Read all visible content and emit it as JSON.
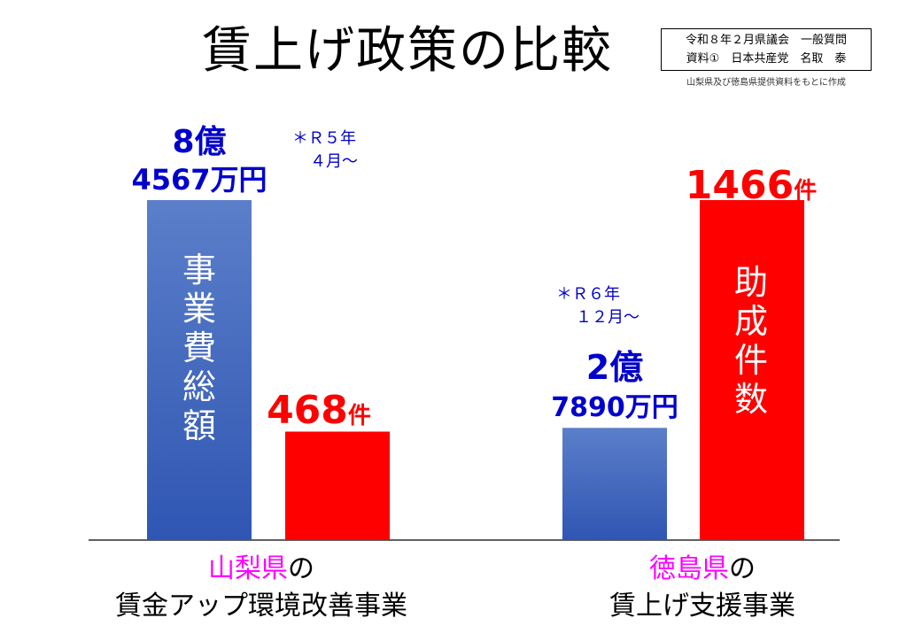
{
  "title": "賃上げ政策の比較",
  "note_box": {
    "line1": "令和８年２月県議会　一般質問",
    "line2": "資料①　日本共産党　名取　泰"
  },
  "source": "山梨県及び徳島県提供資料をもとに作成",
  "colors": {
    "blue_bar_top": "#5b7fc9",
    "blue_bar_bottom": "#2f56b3",
    "red_bar": "#ff0000",
    "blue_text": "#0000cc",
    "red_text": "#ff0000",
    "pref_label": "#ff00ff"
  },
  "chart_data": {
    "type": "bar",
    "groups": [
      {
        "prefecture": "山梨県",
        "label_suffix": "の",
        "label_line2": "賃金アップ環境改善事業",
        "note": [
          "＊Ｒ５年",
          "４月～"
        ],
        "bars": [
          {
            "kind": "事業費総額",
            "inner_label": "事業費総額",
            "value_line1": "8億",
            "value_line2": "4567万円",
            "value_yen": 845670000,
            "relative_height": 1.0
          },
          {
            "kind": "助成件数",
            "value_number": "468",
            "value_unit": "件",
            "value": 468,
            "relative_height": 0.319
          }
        ]
      },
      {
        "prefecture": "徳島県",
        "label_suffix": "の",
        "label_line2": "賃上げ支援事業",
        "note": [
          "＊Ｒ６年",
          "１２月～"
        ],
        "bars": [
          {
            "kind": "事業費総額",
            "value_line1": "2億",
            "value_line2": "7890万円",
            "value_yen": 278900000,
            "relative_height": 0.33
          },
          {
            "kind": "助成件数",
            "inner_label": "助成件数",
            "value_number": "1466",
            "value_unit": "件",
            "value": 1466,
            "relative_height": 1.0
          }
        ]
      }
    ]
  }
}
